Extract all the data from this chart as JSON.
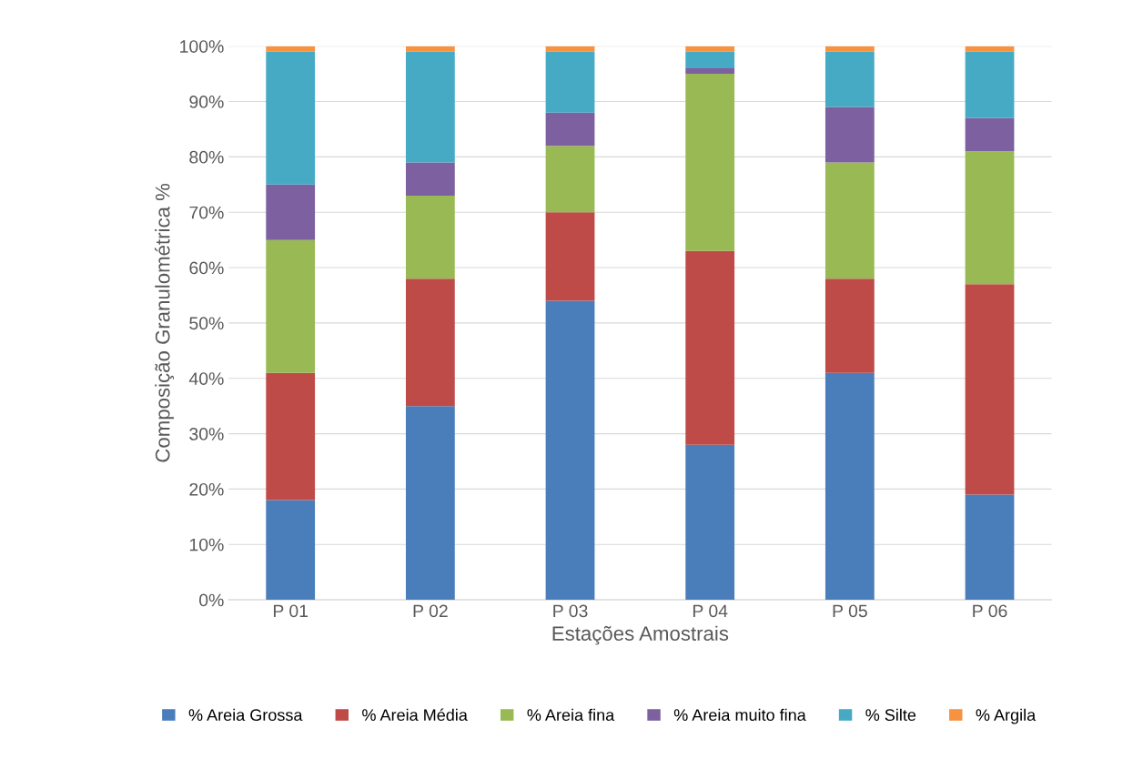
{
  "chart_data": {
    "type": "bar",
    "stacked": true,
    "xlabel": "Estações Amostrais",
    "ylabel": "Composição Granulométrica %",
    "categories": [
      "P 01",
      "P 02",
      "P 03",
      "P 04",
      "P 05",
      "P 06"
    ],
    "series": [
      {
        "name": "% Areia Grossa",
        "color": "#4a7ebb",
        "values": [
          18,
          35,
          54,
          28,
          41,
          19
        ]
      },
      {
        "name": "% Areia Média",
        "color": "#be4b48",
        "values": [
          23,
          23,
          16,
          35,
          17,
          38
        ]
      },
      {
        "name": "% Areia fina",
        "color": "#98b954",
        "values": [
          24,
          15,
          12,
          32,
          21,
          24
        ]
      },
      {
        "name": "% Areia muito fina",
        "color": "#7d60a0",
        "values": [
          10,
          6,
          6,
          1,
          10,
          6
        ]
      },
      {
        "name": "% Silte",
        "color": "#46aac5",
        "values": [
          24,
          20,
          11,
          3,
          10,
          12
        ]
      },
      {
        "name": "% Argila",
        "color": "#f69240",
        "values": [
          1,
          1,
          1,
          1,
          1,
          1
        ]
      }
    ],
    "ylim": [
      0,
      100
    ],
    "yticks": [
      {
        "value": 0,
        "label": "0%"
      },
      {
        "value": 10,
        "label": "10%"
      },
      {
        "value": 20,
        "label": "20%"
      },
      {
        "value": 30,
        "label": "30%"
      },
      {
        "value": 40,
        "label": "40%"
      },
      {
        "value": 50,
        "label": "50%"
      },
      {
        "value": 60,
        "label": "60%"
      },
      {
        "value": 70,
        "label": "70%"
      },
      {
        "value": 80,
        "label": "80%"
      },
      {
        "value": 90,
        "label": "90%"
      },
      {
        "value": 100,
        "label": "100%"
      }
    ],
    "grid": "y",
    "legend": "bottom"
  }
}
